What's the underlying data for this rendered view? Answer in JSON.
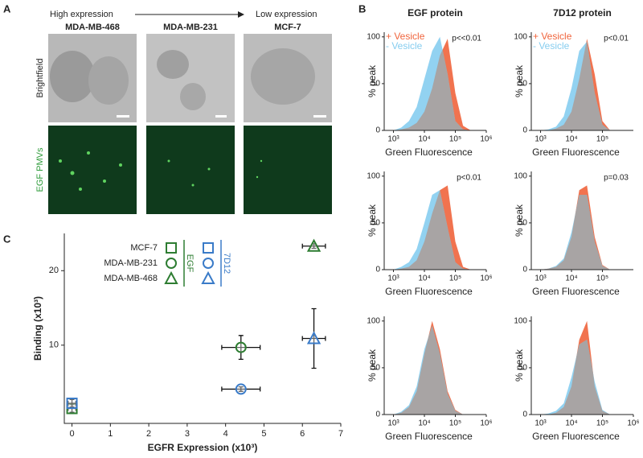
{
  "panel_labels": [
    "A",
    "B",
    "C"
  ],
  "panel_a": {
    "high": "High expression",
    "low": "Low expression",
    "cell_lines": [
      "MDA-MB-468",
      "MDA-MB-231",
      "MCF-7"
    ],
    "row_labels": [
      "Brightfield",
      "EGF PMVs"
    ]
  },
  "chart_data": [
    {
      "type": "area",
      "title": "EGF protein",
      "x": [
        3,
        3.25,
        3.5,
        3.75,
        4,
        4.25,
        4.5,
        4.75,
        5,
        5.25,
        5.5
      ],
      "series": [
        {
          "name": "+ Vesicle",
          "color": "#f0643c",
          "values": [
            0,
            1,
            3,
            8,
            20,
            45,
            80,
            98,
            40,
            5,
            0
          ]
        },
        {
          "name": "- Vesicle",
          "color": "#86cdef",
          "values": [
            0,
            3,
            10,
            25,
            55,
            85,
            100,
            60,
            10,
            1,
            0
          ]
        }
      ],
      "annotation": "p<<0.01",
      "xlabel": "Green Fluorescence",
      "ylabel": "% peak",
      "xlim": [
        2.7,
        6
      ],
      "xticks": [
        {
          "value": 3,
          "label": "10³"
        },
        {
          "value": 4,
          "label": "10⁴"
        },
        {
          "value": 5,
          "label": "10⁵"
        },
        {
          "value": 6,
          "label": "10⁶"
        }
      ],
      "ylim": [
        0,
        105
      ],
      "yticks": [
        0,
        50,
        100
      ]
    },
    {
      "type": "area",
      "title": "7D12 protein",
      "x": [
        3,
        3.25,
        3.5,
        3.75,
        4,
        4.25,
        4.5,
        4.75,
        5,
        5.25,
        5.5
      ],
      "series": [
        {
          "name": "+ Vesicle",
          "color": "#f0643c",
          "values": [
            0,
            0,
            2,
            6,
            20,
            55,
            98,
            60,
            10,
            0,
            0
          ]
        },
        {
          "name": "- Vesicle",
          "color": "#86cdef",
          "values": [
            0,
            1,
            4,
            15,
            45,
            85,
            95,
            40,
            6,
            0,
            0
          ]
        }
      ],
      "annotation": "p<0.01",
      "xlabel": "Green Fluorescence",
      "ylabel": "% peak",
      "xlim": [
        2.7,
        6
      ],
      "xticks": [
        {
          "value": 3,
          "label": "10³"
        },
        {
          "value": 4,
          "label": "10⁴"
        },
        {
          "value": 5,
          "label": "10⁵"
        }
      ],
      "ylim": [
        0,
        105
      ],
      "yticks": [
        0,
        50,
        100
      ]
    },
    {
      "type": "area",
      "x": [
        3,
        3.25,
        3.5,
        3.75,
        4,
        4.25,
        4.5,
        4.75,
        5,
        5.25,
        5.5
      ],
      "series": [
        {
          "color": "#f0643c",
          "values": [
            0,
            1,
            3,
            10,
            30,
            60,
            85,
            90,
            30,
            3,
            0
          ]
        },
        {
          "color": "#86cdef",
          "values": [
            0,
            3,
            8,
            22,
            50,
            80,
            85,
            45,
            8,
            1,
            0
          ]
        }
      ],
      "annotation": "p<0.01",
      "xlabel": "Green Fluorescence",
      "ylabel": "% peak",
      "xlim": [
        2.7,
        6
      ],
      "xticks": [
        {
          "value": 3,
          "label": "10³"
        },
        {
          "value": 4,
          "label": "10⁴"
        },
        {
          "value": 5,
          "label": "10⁵"
        },
        {
          "value": 6,
          "label": "10⁶"
        }
      ],
      "ylim": [
        0,
        105
      ],
      "yticks": [
        0,
        50,
        100
      ]
    },
    {
      "type": "area",
      "x": [
        3,
        3.25,
        3.5,
        3.75,
        4,
        4.25,
        4.5,
        4.75,
        5,
        5.25,
        5.5
      ],
      "series": [
        {
          "color": "#f0643c",
          "values": [
            0,
            1,
            3,
            10,
            35,
            85,
            90,
            35,
            5,
            0,
            0
          ]
        },
        {
          "color": "#86cdef",
          "values": [
            0,
            1,
            4,
            12,
            40,
            80,
            80,
            30,
            4,
            0,
            0
          ]
        }
      ],
      "annotation": "p=0.03",
      "xlabel": "Green Fluorescence",
      "ylabel": "% peak",
      "xlim": [
        2.7,
        6
      ],
      "xticks": [
        {
          "value": 3,
          "label": "10³"
        },
        {
          "value": 4,
          "label": "10⁴"
        },
        {
          "value": 5,
          "label": "10⁵"
        }
      ],
      "ylim": [
        0,
        105
      ],
      "yticks": [
        0,
        50,
        100
      ]
    },
    {
      "type": "area",
      "x": [
        3,
        3.25,
        3.5,
        3.75,
        4,
        4.25,
        4.5,
        4.75,
        5,
        5.25,
        5.5
      ],
      "series": [
        {
          "color": "#f0643c",
          "values": [
            0,
            2,
            8,
            25,
            65,
            100,
            70,
            25,
            5,
            0,
            0
          ]
        },
        {
          "color": "#86cdef",
          "values": [
            0,
            3,
            10,
            30,
            70,
            95,
            65,
            22,
            4,
            0,
            0
          ]
        }
      ],
      "xlabel": "Green Fluorescence",
      "ylabel": "% peak",
      "xlim": [
        2.7,
        6
      ],
      "xticks": [
        {
          "value": 3,
          "label": "10³"
        },
        {
          "value": 4,
          "label": "10⁴"
        },
        {
          "value": 5,
          "label": "10⁵"
        },
        {
          "value": 6,
          "label": "10⁶"
        }
      ],
      "ylim": [
        0,
        105
      ],
      "yticks": [
        0,
        50,
        100
      ]
    },
    {
      "type": "area",
      "x": [
        3,
        3.25,
        3.5,
        3.75,
        4,
        4.25,
        4.5,
        4.75,
        5,
        5.25,
        5.5
      ],
      "series": [
        {
          "color": "#f0643c",
          "values": [
            0,
            0,
            2,
            8,
            30,
            80,
            100,
            30,
            4,
            0,
            0
          ]
        },
        {
          "color": "#86cdef",
          "values": [
            0,
            1,
            4,
            12,
            40,
            75,
            80,
            35,
            5,
            0,
            0
          ]
        }
      ],
      "xlabel": "Green Fluorescence",
      "ylabel": "% peak",
      "xlim": [
        2.7,
        6
      ],
      "xticks": [
        {
          "value": 3,
          "label": "10³"
        },
        {
          "value": 4,
          "label": "10⁴"
        },
        {
          "value": 5,
          "label": "10⁵"
        },
        {
          "value": 6,
          "label": "10⁶"
        }
      ],
      "ylim": [
        0,
        105
      ],
      "yticks": [
        0,
        50,
        100
      ]
    },
    {
      "type": "scatter",
      "categories": [
        "MCF-7",
        "MDA-MB-231",
        "MDA-MB-468"
      ],
      "markers": [
        "square",
        "circle",
        "triangle"
      ],
      "series": [
        {
          "name": "EGF",
          "color": "#2e7d32",
          "x": [
            0,
            4.4,
            6.3
          ],
          "values": [
            1.5,
            9.7,
            23.3
          ],
          "xerr": [
            0.1,
            0.5,
            0.3
          ],
          "yerr": [
            0.5,
            1.6,
            0.3
          ]
        },
        {
          "name": "7D12",
          "color": "#3a7bc8",
          "x": [
            0,
            4.4,
            6.3
          ],
          "values": [
            2.2,
            4.1,
            10.9
          ],
          "xerr": [
            0.1,
            0.5,
            0.3
          ],
          "yerr": [
            0.5,
            0.3,
            4
          ]
        }
      ],
      "xlabel": "EGFR Expression (x10³)",
      "ylabel": "Binding (x10³)",
      "xlim": [
        -0.2,
        7
      ],
      "xticks": [
        0,
        1,
        2,
        3,
        4,
        5,
        6,
        7
      ],
      "ylim": [
        -0.5,
        25
      ],
      "yticks": [
        10,
        20
      ]
    }
  ]
}
